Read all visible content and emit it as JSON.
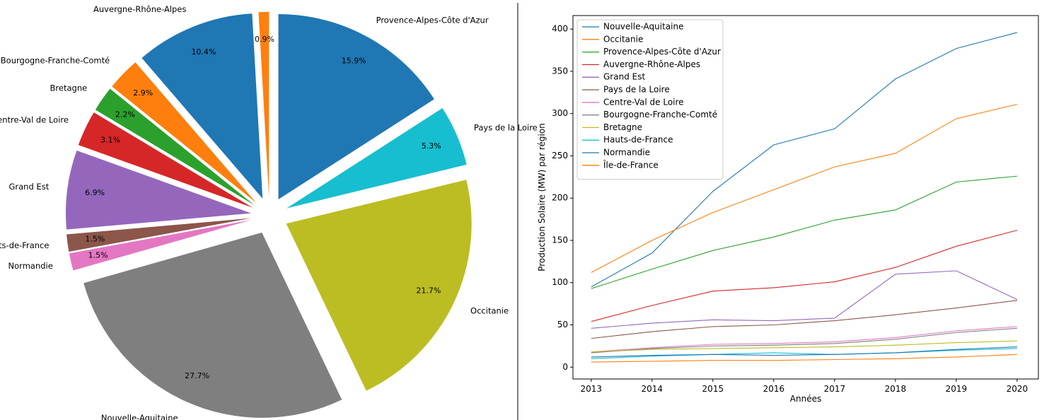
{
  "chart_data": [
    {
      "type": "pie",
      "start_angle_deg": 90,
      "direction": "counterclockwise",
      "exploded": true,
      "slices": [
        {
          "label": "Île-de-France",
          "pct_label": "0.9%",
          "value": 0.9,
          "color": "#ff7f0e"
        },
        {
          "label": "Auvergne-Rhône-Alpes",
          "pct_label": "10.4%",
          "value": 10.4,
          "color": "#1f77b4"
        },
        {
          "label": "Bourgogne-Franche-Comté",
          "pct_label": "2.9%",
          "value": 2.9,
          "color": "#ff7f0e"
        },
        {
          "label": "Bretagne",
          "pct_label": "2.2%",
          "value": 2.2,
          "color": "#2ca02c"
        },
        {
          "label": "Centre-Val de Loire",
          "pct_label": "3.1%",
          "value": 3.1,
          "color": "#d62728"
        },
        {
          "label": "Grand Est",
          "pct_label": "6.9%",
          "value": 6.9,
          "color": "#9467bd"
        },
        {
          "label": "Hauts-de-France",
          "pct_label": "1.5%",
          "value": 1.5,
          "color": "#8c564b"
        },
        {
          "label": "Normandie",
          "pct_label": "1.5%",
          "value": 1.5,
          "color": "#e377c2"
        },
        {
          "label": "Nouvelle-Aquitaine",
          "pct_label": "27.7%",
          "value": 27.7,
          "color": "#7f7f7f"
        },
        {
          "label": "Occitanie",
          "pct_label": "21.7%",
          "value": 21.7,
          "color": "#bcbd22"
        },
        {
          "label": "Pays de la Loire",
          "pct_label": "5.3%",
          "value": 5.3,
          "color": "#17becf"
        },
        {
          "label": "Provence-Alpes-Côte d'Azur",
          "pct_label": "15.9%",
          "value": 15.9,
          "color": "#1f77b4"
        }
      ]
    },
    {
      "type": "line",
      "xlabel": "Années",
      "ylabel": "Production Solaire (MW) par région",
      "xlim": [
        2012.7,
        2020.35
      ],
      "ylim": [
        -14,
        416
      ],
      "x_ticks": [
        2013,
        2014,
        2015,
        2016,
        2017,
        2018,
        2019,
        2020
      ],
      "y_ticks": [
        0,
        50,
        100,
        150,
        200,
        250,
        300,
        350,
        400
      ],
      "grid": false,
      "legend": "top-left",
      "x": [
        2013,
        2014,
        2015,
        2016,
        2017,
        2018,
        2019,
        2020
      ],
      "series": [
        {
          "name": "Nouvelle-Aquitaine",
          "color": "#1f77b4",
          "values": [
            95,
            135,
            208,
            263,
            282,
            341,
            377,
            396
          ]
        },
        {
          "name": "Occitanie",
          "color": "#ff7f0e",
          "values": [
            112,
            150,
            183,
            210,
            237,
            253,
            294,
            311
          ]
        },
        {
          "name": "Provence-Alpes-Côte d'Azur",
          "color": "#2ca02c",
          "values": [
            93,
            116,
            138,
            154,
            174,
            186,
            219,
            226
          ]
        },
        {
          "name": "Auvergne-Rhône-Alpes",
          "color": "#d62728",
          "values": [
            54,
            73,
            90,
            94,
            101,
            118,
            143,
            162
          ]
        },
        {
          "name": "Grand Est",
          "color": "#9467bd",
          "values": [
            46,
            52,
            56,
            55,
            58,
            110,
            114,
            80
          ]
        },
        {
          "name": "Pays de la Loire",
          "color": "#8c564b",
          "values": [
            34,
            42,
            48,
            50,
            55,
            62,
            70,
            79
          ]
        },
        {
          "name": "Centre-Val de Loire",
          "color": "#e377c2",
          "values": [
            18,
            23,
            27,
            28,
            30,
            35,
            43,
            48
          ]
        },
        {
          "name": "Bourgogne-Franche-Comté",
          "color": "#7f7f7f",
          "values": [
            17,
            22,
            25,
            26,
            28,
            33,
            41,
            46
          ]
        },
        {
          "name": "Bretagne",
          "color": "#bcbd22",
          "values": [
            18,
            21,
            22,
            23,
            24,
            26,
            29,
            31
          ]
        },
        {
          "name": "Hauts-de-France",
          "color": "#17becf",
          "values": [
            10,
            13,
            15,
            17,
            15,
            17,
            20,
            22
          ]
        },
        {
          "name": "Normandie",
          "color": "#1f77b4",
          "values": [
            12,
            14,
            15,
            14,
            15,
            17,
            21,
            24
          ]
        },
        {
          "name": "Île-de-France",
          "color": "#ff7f0e",
          "values": [
            6,
            7,
            8,
            8,
            9,
            10,
            12,
            15
          ]
        }
      ]
    }
  ]
}
